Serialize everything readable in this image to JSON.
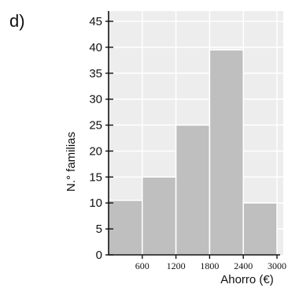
{
  "panel_label": "d)",
  "chart_data": {
    "type": "histogram",
    "bins": [
      {
        "from": 0,
        "to": 600,
        "value": 10.5
      },
      {
        "from": 600,
        "to": 1200,
        "value": 15
      },
      {
        "from": 1200,
        "to": 1800,
        "value": 25
      },
      {
        "from": 1800,
        "to": 2400,
        "value": 39.5
      },
      {
        "from": 2400,
        "to": 3000,
        "value": 10
      }
    ],
    "xlabel": "Ahorro (€)",
    "ylabel": "N.° familias",
    "xlim": [
      0,
      3000
    ],
    "ylim": [
      0,
      45
    ],
    "xticks": [
      600,
      1200,
      1800,
      2400,
      3000
    ],
    "xtick_labels": [
      "600",
      "1200",
      "1800",
      "2400",
      "3000"
    ],
    "yticks": [
      0,
      5,
      10,
      15,
      20,
      25,
      30,
      35,
      40,
      45
    ],
    "ytick_labels": [
      "0",
      "5",
      "10",
      "15",
      "20",
      "25",
      "30",
      "35",
      "40",
      "45"
    ],
    "grid": true,
    "colors": {
      "plot_background": "#ededed",
      "gridline": "#ffffff",
      "bar_fill": "#bfbfbf",
      "axis": "#111111"
    }
  }
}
